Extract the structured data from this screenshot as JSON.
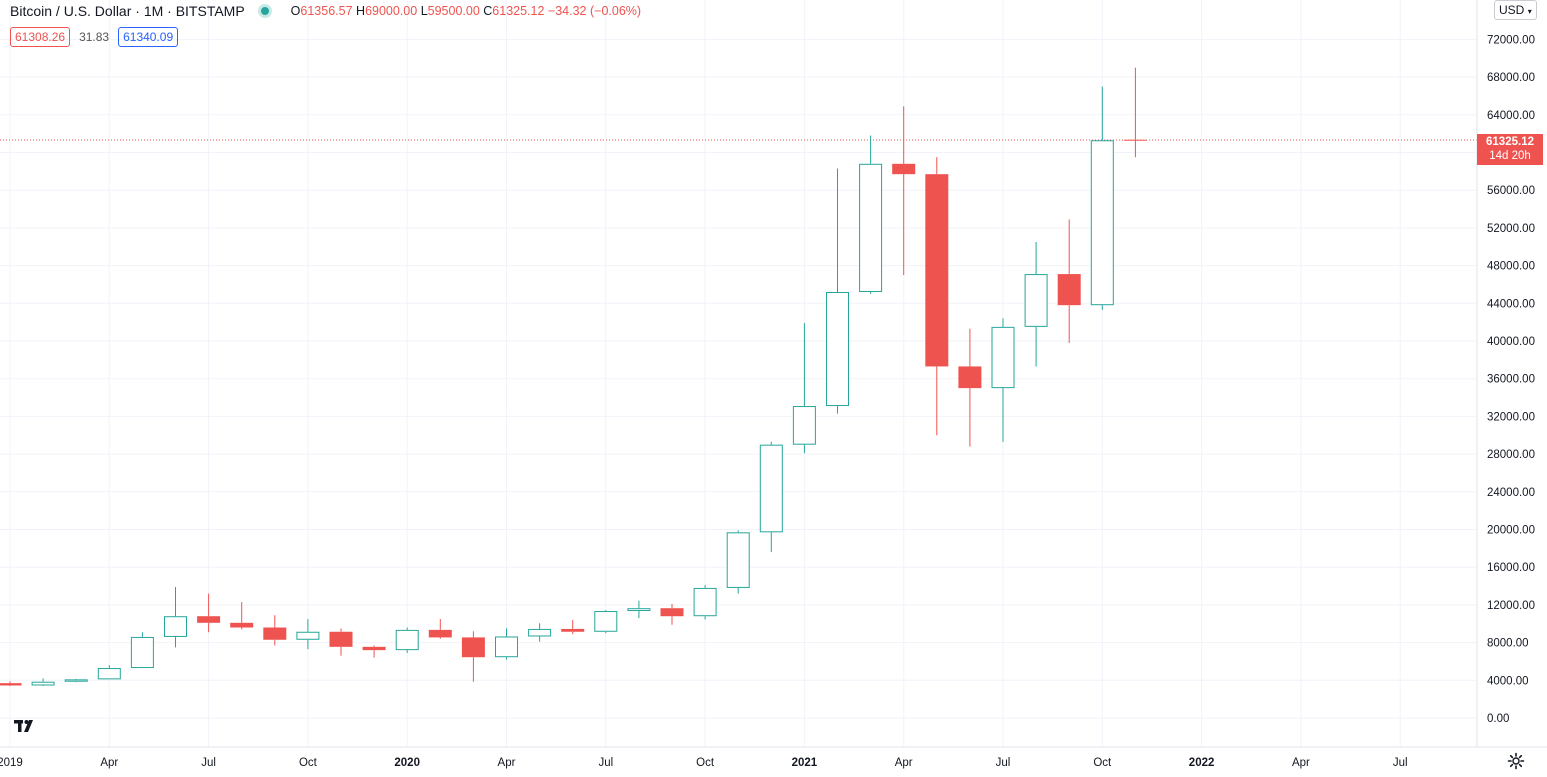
{
  "header": {
    "symbol_title": "Bitcoin / U.S. Dollar · 1M · BITSTAMP",
    "ohlc": {
      "open_label": "O",
      "open": "61356.57",
      "high_label": "H",
      "high": "69000.00",
      "low_label": "L",
      "low": "59500.00",
      "close_label": "C",
      "close": "61325.12",
      "change": "−34.32 (−0.06%)"
    },
    "bid": "61308.26",
    "spread": "31.83",
    "ask": "61340.09"
  },
  "currency_button": "USD",
  "last_price_label": {
    "price": "61325.12",
    "countdown": "14d 20h"
  },
  "colors": {
    "up": "#26a69a",
    "down": "#ef5350",
    "grid": "#f0f3fa",
    "axis_text": "#131722"
  },
  "icons": {
    "logo": "tradingview-logo-icon",
    "settings": "gear-icon"
  },
  "chart_data": {
    "type": "candlestick",
    "interval": "1M",
    "ylim": [
      -2000,
      76000
    ],
    "y_ticks": [
      0,
      4000,
      8000,
      12000,
      16000,
      20000,
      24000,
      28000,
      32000,
      36000,
      40000,
      44000,
      48000,
      52000,
      56000,
      60000,
      64000,
      68000,
      72000
    ],
    "y_tick_labels": [
      "0.00",
      "4000.00",
      "8000.00",
      "12000.00",
      "16000.00",
      "20000.00",
      "24000.00",
      "28000.00",
      "32000.00",
      "36000.00",
      "40000.00",
      "44000.00",
      "48000.00",
      "52000.00",
      "56000.00",
      "60000.00",
      "64000.00",
      "68000.00",
      "72000.00"
    ],
    "x_ticks": [
      {
        "date": "2019-01",
        "label": "2019",
        "bold": false
      },
      {
        "date": "2019-04",
        "label": "Apr",
        "bold": false
      },
      {
        "date": "2019-07",
        "label": "Jul",
        "bold": false
      },
      {
        "date": "2019-10",
        "label": "Oct",
        "bold": false
      },
      {
        "date": "2020-01",
        "label": "2020",
        "bold": true
      },
      {
        "date": "2020-04",
        "label": "Apr",
        "bold": false
      },
      {
        "date": "2020-07",
        "label": "Jul",
        "bold": false
      },
      {
        "date": "2020-10",
        "label": "Oct",
        "bold": false
      },
      {
        "date": "2021-01",
        "label": "2021",
        "bold": true
      },
      {
        "date": "2021-04",
        "label": "Apr",
        "bold": false
      },
      {
        "date": "2021-07",
        "label": "Jul",
        "bold": false
      },
      {
        "date": "2021-10",
        "label": "Oct",
        "bold": false
      },
      {
        "date": "2022-01",
        "label": "2022",
        "bold": true
      },
      {
        "date": "2022-04",
        "label": "Apr",
        "bold": false
      },
      {
        "date": "2022-07",
        "label": "Jul",
        "bold": false
      }
    ],
    "last_price": 61325.12,
    "candles": [
      {
        "date": "2019-01",
        "o": 3700,
        "h": 3900,
        "l": 3400,
        "c": 3450
      },
      {
        "date": "2019-02",
        "o": 3450,
        "h": 4200,
        "l": 3400,
        "c": 3850
      },
      {
        "date": "2019-03",
        "o": 3850,
        "h": 4150,
        "l": 3800,
        "c": 4100
      },
      {
        "date": "2019-04",
        "o": 4100,
        "h": 5600,
        "l": 4100,
        "c": 5300
      },
      {
        "date": "2019-05",
        "o": 5300,
        "h": 9100,
        "l": 5300,
        "c": 8600
      },
      {
        "date": "2019-06",
        "o": 8600,
        "h": 13900,
        "l": 7500,
        "c": 10800
      },
      {
        "date": "2019-07",
        "o": 10800,
        "h": 13200,
        "l": 9100,
        "c": 10100
      },
      {
        "date": "2019-08",
        "o": 10100,
        "h": 12300,
        "l": 9400,
        "c": 9600
      },
      {
        "date": "2019-09",
        "o": 9600,
        "h": 10900,
        "l": 7700,
        "c": 8300
      },
      {
        "date": "2019-10",
        "o": 8300,
        "h": 10500,
        "l": 7300,
        "c": 9150
      },
      {
        "date": "2019-11",
        "o": 9150,
        "h": 9500,
        "l": 6600,
        "c": 7550
      },
      {
        "date": "2019-12",
        "o": 7550,
        "h": 7700,
        "l": 6400,
        "c": 7200
      },
      {
        "date": "2020-01",
        "o": 7200,
        "h": 9600,
        "l": 6900,
        "c": 9350
      },
      {
        "date": "2020-02",
        "o": 9350,
        "h": 10500,
        "l": 8400,
        "c": 8550
      },
      {
        "date": "2020-03",
        "o": 8550,
        "h": 9200,
        "l": 3850,
        "c": 6450
      },
      {
        "date": "2020-04",
        "o": 6450,
        "h": 9500,
        "l": 6200,
        "c": 8650
      },
      {
        "date": "2020-05",
        "o": 8650,
        "h": 10050,
        "l": 8100,
        "c": 9450
      },
      {
        "date": "2020-06",
        "o": 9450,
        "h": 10400,
        "l": 8900,
        "c": 9150
      },
      {
        "date": "2020-07",
        "o": 9150,
        "h": 11450,
        "l": 9000,
        "c": 11350
      },
      {
        "date": "2020-08",
        "o": 11350,
        "h": 12450,
        "l": 10600,
        "c": 11650
      },
      {
        "date": "2020-09",
        "o": 11650,
        "h": 12100,
        "l": 9900,
        "c": 10800
      },
      {
        "date": "2020-10",
        "o": 10800,
        "h": 14100,
        "l": 10450,
        "c": 13800
      },
      {
        "date": "2020-11",
        "o": 13800,
        "h": 19900,
        "l": 13200,
        "c": 19700
      },
      {
        "date": "2020-12",
        "o": 19700,
        "h": 29300,
        "l": 17600,
        "c": 29000
      },
      {
        "date": "2021-01",
        "o": 29000,
        "h": 41900,
        "l": 28100,
        "c": 33100
      },
      {
        "date": "2021-02",
        "o": 33100,
        "h": 58300,
        "l": 32300,
        "c": 45200
      },
      {
        "date": "2021-03",
        "o": 45200,
        "h": 61800,
        "l": 45000,
        "c": 58800
      },
      {
        "date": "2021-04",
        "o": 58800,
        "h": 64900,
        "l": 47000,
        "c": 57700
      },
      {
        "date": "2021-05",
        "o": 57700,
        "h": 59500,
        "l": 30000,
        "c": 37300
      },
      {
        "date": "2021-06",
        "o": 37300,
        "h": 41300,
        "l": 28800,
        "c": 35000
      },
      {
        "date": "2021-07",
        "o": 35000,
        "h": 42400,
        "l": 29300,
        "c": 41500
      },
      {
        "date": "2021-08",
        "o": 41500,
        "h": 50500,
        "l": 37300,
        "c": 47100
      },
      {
        "date": "2021-09",
        "o": 47100,
        "h": 52900,
        "l": 39800,
        "c": 43800
      },
      {
        "date": "2021-10",
        "o": 43800,
        "h": 67000,
        "l": 43300,
        "c": 61300
      },
      {
        "date": "2021-11",
        "o": 61357,
        "h": 69000,
        "l": 59500,
        "c": 61325
      }
    ]
  }
}
